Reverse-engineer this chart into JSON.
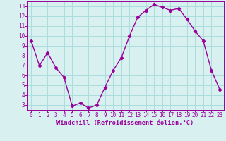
{
  "x": [
    0,
    1,
    2,
    3,
    4,
    5,
    6,
    7,
    8,
    9,
    10,
    11,
    12,
    13,
    14,
    15,
    16,
    17,
    18,
    19,
    20,
    21,
    22,
    23
  ],
  "y": [
    9.5,
    7.0,
    8.3,
    6.8,
    5.8,
    2.9,
    3.2,
    2.7,
    3.0,
    4.8,
    6.5,
    7.8,
    10.0,
    11.9,
    12.6,
    13.2,
    12.9,
    12.6,
    12.8,
    11.7,
    10.5,
    9.5,
    6.5,
    4.6
  ],
  "line_color": "#990099",
  "marker": "D",
  "marker_size": 2.2,
  "bg_color": "#d8f0f0",
  "grid_color": "#aadddd",
  "xlabel": "Windchill (Refroidissement éolien,°C)",
  "xlabel_color": "#990099",
  "tick_color": "#990099",
  "ylim": [
    2.5,
    13.5
  ],
  "yticks": [
    3,
    4,
    5,
    6,
    7,
    8,
    9,
    10,
    11,
    12,
    13
  ],
  "xticks": [
    0,
    1,
    2,
    3,
    4,
    5,
    6,
    7,
    8,
    9,
    10,
    11,
    12,
    13,
    14,
    15,
    16,
    17,
    18,
    19,
    20,
    21,
    22,
    23
  ],
  "line_width": 1.0,
  "tick_fontsize": 5.5,
  "xlabel_fontsize": 6.2,
  "spine_color": "#990099"
}
